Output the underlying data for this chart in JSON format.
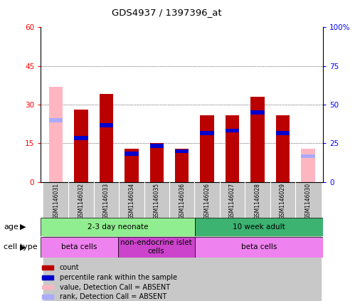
{
  "title": "GDS4937 / 1397396_at",
  "samples": [
    "GSM1146031",
    "GSM1146032",
    "GSM1146033",
    "GSM1146034",
    "GSM1146035",
    "GSM1146036",
    "GSM1146026",
    "GSM1146027",
    "GSM1146028",
    "GSM1146029",
    "GSM1146030"
  ],
  "red_values": [
    0,
    28,
    34,
    13,
    15,
    13,
    26,
    26,
    33,
    26,
    0
  ],
  "blue_values": [
    25,
    17,
    22,
    11,
    14,
    12,
    19,
    20,
    27,
    19,
    12
  ],
  "red_absent": [
    37,
    0,
    0,
    0,
    0,
    0,
    0,
    0,
    0,
    0,
    13
  ],
  "blue_absent": [
    24,
    0,
    0,
    0,
    0,
    0,
    0,
    0,
    0,
    0,
    10
  ],
  "blue_bar_height": 1.5,
  "ylim": [
    0,
    60
  ],
  "y2lim": [
    0,
    100
  ],
  "yticks": [
    0,
    15,
    30,
    45,
    60
  ],
  "ytick_labels": [
    "0",
    "15",
    "30",
    "45",
    "60"
  ],
  "y2ticks": [
    0,
    25,
    50,
    75,
    100
  ],
  "y2tick_labels": [
    "0",
    "25",
    "50",
    "75",
    "100%"
  ],
  "age_groups": [
    {
      "label": "2-3 day neonate",
      "start": 0,
      "end": 6,
      "color": "#90EE90"
    },
    {
      "label": "10 week adult",
      "start": 6,
      "end": 11,
      "color": "#3CB371"
    }
  ],
  "cell_type_groups": [
    {
      "label": "beta cells",
      "start": 0,
      "end": 3,
      "color": "#EE82EE"
    },
    {
      "label": "non-endocrine islet\ncells",
      "start": 3,
      "end": 6,
      "color": "#CC44CC"
    },
    {
      "label": "beta cells",
      "start": 6,
      "end": 11,
      "color": "#EE82EE"
    }
  ],
  "legend_items": [
    {
      "label": "count",
      "color": "#CC0000"
    },
    {
      "label": "percentile rank within the sample",
      "color": "#0000CC"
    },
    {
      "label": "value, Detection Call = ABSENT",
      "color": "#FFB6C1"
    },
    {
      "label": "rank, Detection Call = ABSENT",
      "color": "#AAAAFF"
    }
  ],
  "bar_width": 0.55,
  "red_color": "#BB0000",
  "blue_color": "#0000CC",
  "pink_color": "#FFB6C1",
  "light_blue_color": "#AAAAFF",
  "tick_bg": "#C8C8C8"
}
